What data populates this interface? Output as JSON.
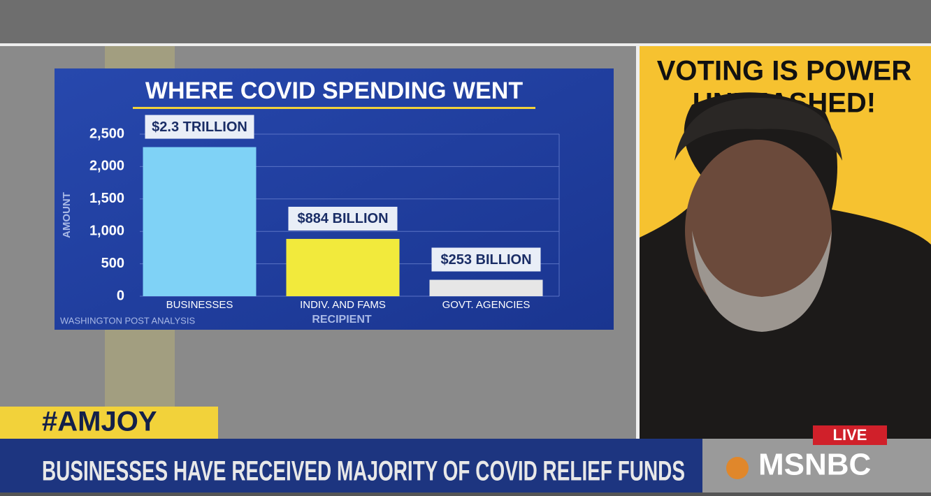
{
  "chart_data": {
    "type": "bar",
    "title": "WHERE COVID SPENDING WENT",
    "categories": [
      "BUSINESSES",
      "INDIV. AND FAMS",
      "GOVT. AGENCIES"
    ],
    "values": [
      2300,
      884,
      253
    ],
    "value_labels": [
      "$2.3 TRILLION",
      "$884 BILLION",
      "$253 BILLION"
    ],
    "colors": [
      "#7fd2f6",
      "#f2ea3c",
      "#e6e6e6"
    ],
    "ylabel": "AMOUNT",
    "xlabel": "RECIPIENT",
    "source": "WASHINGTON POST ANALYSIS",
    "ylim": [
      0,
      2500
    ],
    "yticks": [
      0,
      500,
      {
        "value": 1000,
        "label": "1,000"
      },
      {
        "value": 1500,
        "label": "1,500"
      },
      {
        "value": 2000,
        "label": "2,000"
      },
      {
        "value": 2500,
        "label": "2,500"
      }
    ],
    "grid": true
  },
  "sign": {
    "line1": "VOTING IS POWER",
    "line2": "UNLEASHED!"
  },
  "show": {
    "hashtag": "#AMJOY",
    "headline": "BUSINESSES HAVE RECEIVED MAJORITY OF COVID RELIEF FUNDS",
    "live": "LIVE",
    "network": "MSNBC"
  }
}
